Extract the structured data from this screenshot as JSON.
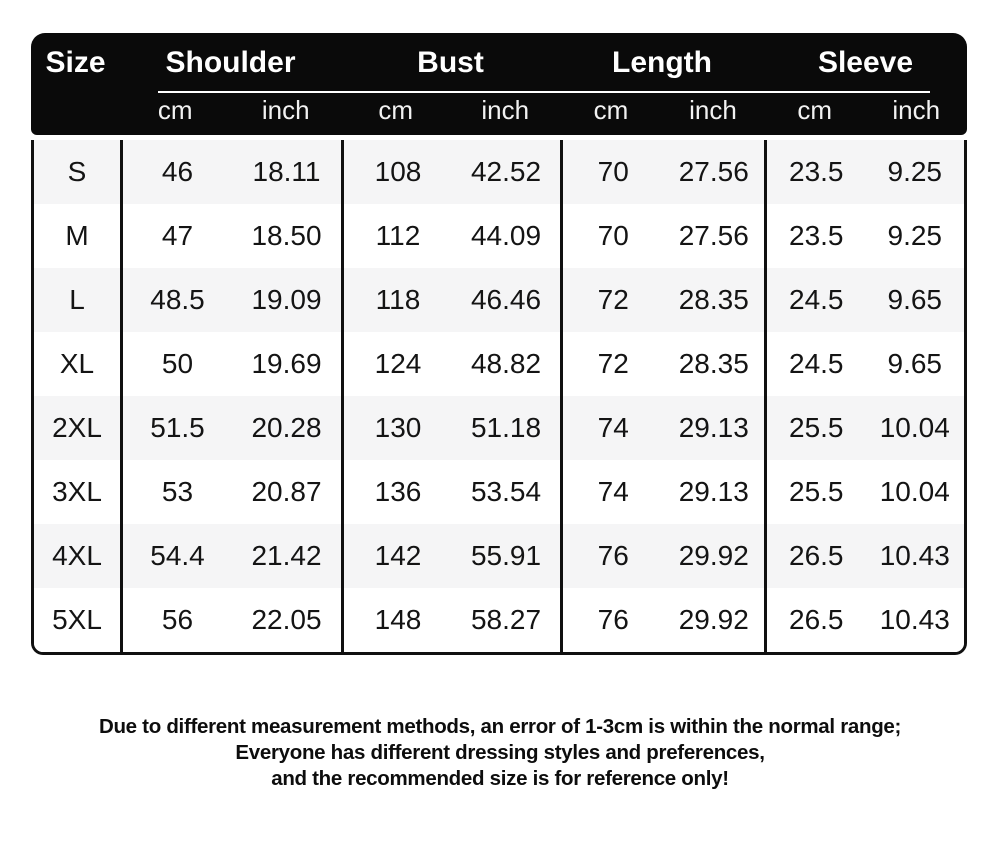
{
  "colors": {
    "header_bg": "#0a0a0a",
    "header_text": "#ffffff",
    "row_stripe": "#f5f5f6",
    "border": "#101010",
    "text": "#141414",
    "page_bg": "#ffffff"
  },
  "table": {
    "size_header": "Size",
    "groups": [
      {
        "label": "Shoulder",
        "units": [
          "cm",
          "inch"
        ]
      },
      {
        "label": "Bust",
        "units": [
          "cm",
          "inch"
        ]
      },
      {
        "label": "Length",
        "units": [
          "cm",
          "inch"
        ]
      },
      {
        "label": "Sleeve",
        "units": [
          "cm",
          "inch"
        ]
      }
    ],
    "rows": [
      {
        "size": "S",
        "shoulder": [
          "46",
          "18.11"
        ],
        "bust": [
          "108",
          "42.52"
        ],
        "length": [
          "70",
          "27.56"
        ],
        "sleeve": [
          "23.5",
          "9.25"
        ]
      },
      {
        "size": "M",
        "shoulder": [
          "47",
          "18.50"
        ],
        "bust": [
          "112",
          "44.09"
        ],
        "length": [
          "70",
          "27.56"
        ],
        "sleeve": [
          "23.5",
          "9.25"
        ]
      },
      {
        "size": "L",
        "shoulder": [
          "48.5",
          "19.09"
        ],
        "bust": [
          "118",
          "46.46"
        ],
        "length": [
          "72",
          "28.35"
        ],
        "sleeve": [
          "24.5",
          "9.65"
        ]
      },
      {
        "size": "XL",
        "shoulder": [
          "50",
          "19.69"
        ],
        "bust": [
          "124",
          "48.82"
        ],
        "length": [
          "72",
          "28.35"
        ],
        "sleeve": [
          "24.5",
          "9.65"
        ]
      },
      {
        "size": "2XL",
        "shoulder": [
          "51.5",
          "20.28"
        ],
        "bust": [
          "130",
          "51.18"
        ],
        "length": [
          "74",
          "29.13"
        ],
        "sleeve": [
          "25.5",
          "10.04"
        ]
      },
      {
        "size": "3XL",
        "shoulder": [
          "53",
          "20.87"
        ],
        "bust": [
          "136",
          "53.54"
        ],
        "length": [
          "74",
          "29.13"
        ],
        "sleeve": [
          "25.5",
          "10.04"
        ]
      },
      {
        "size": "4XL",
        "shoulder": [
          "54.4",
          "21.42"
        ],
        "bust": [
          "142",
          "55.91"
        ],
        "length": [
          "76",
          "29.92"
        ],
        "sleeve": [
          "26.5",
          "10.43"
        ]
      },
      {
        "size": "5XL",
        "shoulder": [
          "56",
          "22.05"
        ],
        "bust": [
          "148",
          "58.27"
        ],
        "length": [
          "76",
          "29.92"
        ],
        "sleeve": [
          "26.5",
          "10.43"
        ]
      }
    ]
  },
  "footer": {
    "lines": [
      "Due to different measurement methods, an error of 1-3cm is within the normal range;",
      "Everyone has different dressing styles and preferences,",
      "and the recommended size is for reference only!"
    ]
  },
  "chart_data": {
    "type": "table",
    "columns": [
      "Size",
      "Shoulder cm",
      "Shoulder inch",
      "Bust cm",
      "Bust inch",
      "Length cm",
      "Length inch",
      "Sleeve cm",
      "Sleeve inch"
    ],
    "rows": [
      [
        "S",
        46,
        18.11,
        108,
        42.52,
        70,
        27.56,
        23.5,
        9.25
      ],
      [
        "M",
        47,
        18.5,
        112,
        44.09,
        70,
        27.56,
        23.5,
        9.25
      ],
      [
        "L",
        48.5,
        19.09,
        118,
        46.46,
        72,
        28.35,
        24.5,
        9.65
      ],
      [
        "XL",
        50,
        19.69,
        124,
        48.82,
        72,
        28.35,
        24.5,
        9.65
      ],
      [
        "2XL",
        51.5,
        20.28,
        130,
        51.18,
        74,
        29.13,
        25.5,
        10.04
      ],
      [
        "3XL",
        53,
        20.87,
        136,
        53.54,
        74,
        29.13,
        25.5,
        10.04
      ],
      [
        "4XL",
        54.4,
        21.42,
        142,
        55.91,
        76,
        29.92,
        26.5,
        10.43
      ],
      [
        "5XL",
        56,
        22.05,
        148,
        58.27,
        76,
        29.92,
        26.5,
        10.43
      ]
    ]
  }
}
